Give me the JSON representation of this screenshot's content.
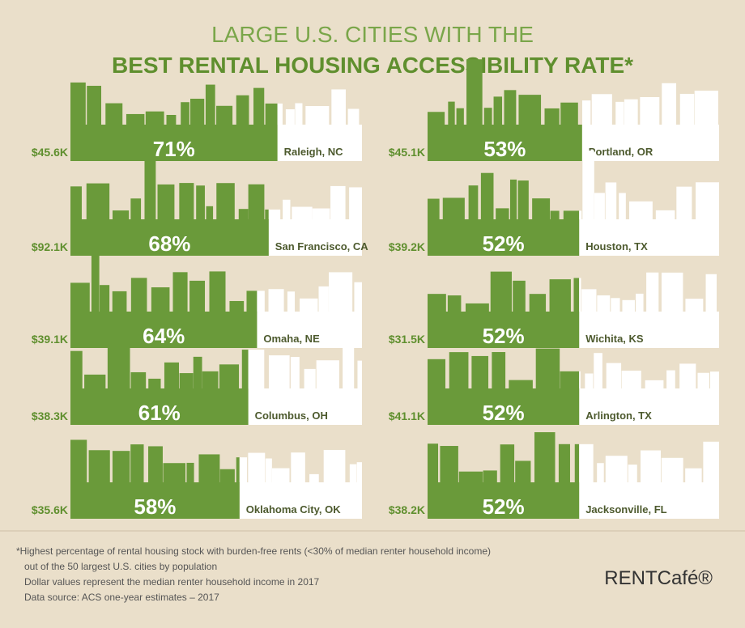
{
  "chart_data": {
    "type": "bar",
    "title": "LARGE U.S. CITIES WITH THE",
    "subtitle": "BEST RENTAL HOUSING ACCESSIBILITY RATE*",
    "categories": [
      "Raleigh, NC",
      "San Francisco, CA",
      "Omaha, NE",
      "Columbus, OH",
      "Oklahoma City, OK",
      "Portland, OR",
      "Houston, TX",
      "Wichita, KS",
      "Arlington, TX",
      "Jacksonville, FL"
    ],
    "values": [
      71,
      68,
      64,
      61,
      58,
      53,
      52,
      52,
      52,
      52
    ],
    "value_labels": [
      "71%",
      "68%",
      "64%",
      "61%",
      "58%",
      "53%",
      "52%",
      "52%",
      "52%",
      "52%"
    ],
    "income_labels": [
      "$45.6K",
      "$92.1K",
      "$39.1K",
      "$38.3K",
      "$35.6K",
      "$45.1K",
      "$39.2K",
      "$31.5K",
      "$41.1K",
      "$38.2K"
    ],
    "color": "#6a9a3a",
    "notes": [
      "*Highest percentage of rental housing stock with burden-free rents (<30% of median renter household income)",
      "out of the 50 largest U.S. cities by population",
      "Dollar values represent the median renter household income in 2017",
      "Data source: ACS one-year estimates – 2017"
    ],
    "brand": "RENTCafé®"
  }
}
